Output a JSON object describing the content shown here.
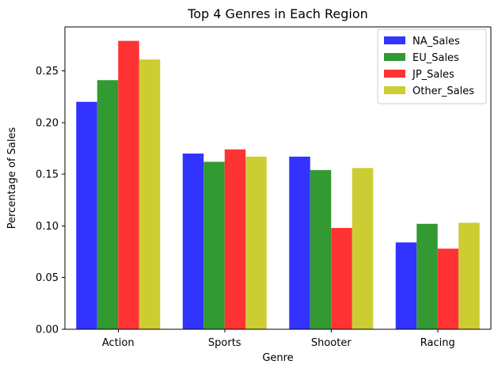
{
  "chart_data": {
    "type": "bar",
    "title": "Top 4 Genres in Each Region",
    "xlabel": "Genre",
    "ylabel": "Percentage of Sales",
    "categories": [
      "Action",
      "Sports",
      "Shooter",
      "Racing"
    ],
    "series": [
      {
        "name": "NA_Sales",
        "values": [
          0.22,
          0.17,
          0.167,
          0.084
        ],
        "color": "#3333ff"
      },
      {
        "name": "EU_Sales",
        "values": [
          0.241,
          0.162,
          0.154,
          0.102
        ],
        "color": "#339933"
      },
      {
        "name": "JP_Sales",
        "values": [
          0.279,
          0.174,
          0.098,
          0.078
        ],
        "color": "#ff3333"
      },
      {
        "name": "Other_Sales",
        "values": [
          0.261,
          0.167,
          0.156,
          0.103
        ],
        "color": "#cccc33"
      }
    ],
    "ylim": [
      0,
      0.2925
    ],
    "yticks": [
      "0.00",
      "0.05",
      "0.10",
      "0.15",
      "0.20",
      "0.25"
    ],
    "legend_position": "top-right",
    "grid": false,
    "bar_opacity": 0.8
  }
}
